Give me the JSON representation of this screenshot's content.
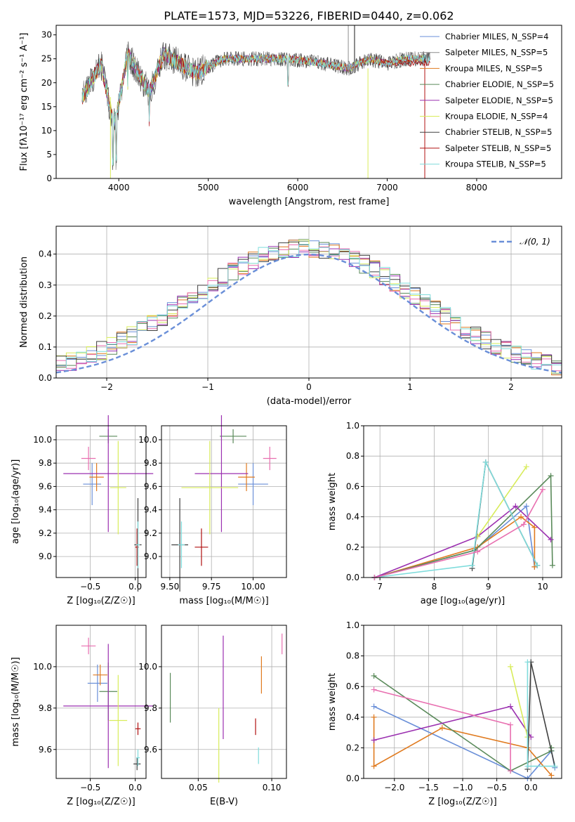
{
  "colors": [
    "#6a8fd8",
    "#8c8c8c",
    "#e07b20",
    "#5a8a5a",
    "#9b30b0",
    "#d8ec5a",
    "#404040",
    "#b01010",
    "#7fdcdc",
    "#e86fb0"
  ],
  "chart_data": [
    {
      "id": "spectrum",
      "type": "line",
      "title": "PLATE=1573, MJD=53226, FIBERID=0440, z=0.062",
      "xlabel": "wavelength [Angstrom, rest frame]",
      "ylabel": "Flux [fλ10⁻¹⁷ erg cm⁻² s⁻¹ A⁻¹]",
      "xlim": [
        3300,
        8950
      ],
      "ylim": [
        0,
        32
      ],
      "xticks": [
        "4000",
        "5000",
        "6000",
        "7000",
        "8000"
      ],
      "yticks": [
        "0",
        "5",
        "10",
        "15",
        "20",
        "25",
        "30"
      ],
      "legend_position": "upper-right",
      "legend": [
        "Chabrier MILES, N_SSP=4",
        "Salpeter MILES, N_SSP=5",
        "Kroupa MILES, N_SSP=5",
        "Chabrier ELODIE, N_SSP=5",
        "Salpeter ELODIE, N_SSP=5",
        "Kroupa ELODIE, N_SSP=4",
        "Chabrier STELIB, N_SSP=5",
        "Salpeter STELIB, N_SSP=5",
        "Kroupa STELIB, N_SSP=5"
      ],
      "series_anchor_x": [
        3600,
        3800,
        3935,
        3970,
        4100,
        4340,
        4500,
        4860,
        5175,
        5400,
        5900,
        6300,
        6565,
        6800,
        7000,
        7200,
        7400,
        7600
      ],
      "series_anchor_y": [
        17,
        24,
        12,
        13,
        26,
        18,
        26,
        22,
        25,
        25,
        25,
        24,
        23,
        25,
        24,
        25,
        25,
        25
      ]
    },
    {
      "id": "residuals",
      "type": "step",
      "xlabel": "(data-model)/error",
      "ylabel": "Normed distribution",
      "xlim": [
        -2.5,
        2.5
      ],
      "ylim": [
        0,
        0.49
      ],
      "xticks": [
        "−2",
        "−1",
        "0",
        "1",
        "2"
      ],
      "yticks": [
        "0.0",
        "0.1",
        "0.2",
        "0.3",
        "0.4"
      ],
      "legend": [
        "𝒩(0, 1)"
      ],
      "legend_position": "upper-right",
      "grid": true
    },
    {
      "id": "age_vs_Z",
      "type": "errorbar",
      "xlabel": "Z [log₁₀(Z/Z☉)]",
      "ylabel": "age [log₁₀(age/yr)]",
      "xlim": [
        -0.88,
        0.12
      ],
      "ylim": [
        8.82,
        10.12
      ],
      "xticks": [
        "−0.5",
        "0.0"
      ],
      "yticks": [
        "9.0",
        "9.2",
        "9.4",
        "9.6",
        "9.8",
        "10.0"
      ],
      "points": [
        {
          "x": -0.48,
          "y": 9.62,
          "xerr": 0.1,
          "yerr": 0.18,
          "c": 0
        },
        {
          "x": -0.43,
          "y": 9.68,
          "xerr": 0.08,
          "yerr": 0.12,
          "c": 2
        },
        {
          "x": -0.3,
          "y": 10.03,
          "xerr": 0.1,
          "yerr": 0.06,
          "c": 3
        },
        {
          "x": -0.3,
          "y": 9.71,
          "xerr": 0.5,
          "yerr": 0.5,
          "c": 4
        },
        {
          "x": -0.19,
          "y": 9.59,
          "xerr": 0.09,
          "yerr": 0.4,
          "c": 5
        },
        {
          "x": 0.03,
          "y": 9.1,
          "xerr": 0.04,
          "yerr": 0.4,
          "c": 6
        },
        {
          "x": 0.02,
          "y": 9.08,
          "xerr": 0.02,
          "yerr": 0.16,
          "c": 7
        },
        {
          "x": 0.03,
          "y": 9.1,
          "xerr": 0.02,
          "yerr": 0.2,
          "c": 8
        },
        {
          "x": -0.52,
          "y": 9.84,
          "xerr": 0.08,
          "yerr": 0.1,
          "c": 9
        }
      ]
    },
    {
      "id": "age_vs_mass",
      "type": "errorbar",
      "xlabel": "mass [log₁₀(M/M☉)]",
      "ylabel": "",
      "xlim": [
        9.45,
        10.2
      ],
      "ylim": [
        8.82,
        10.12
      ],
      "xticks": [
        "9.50",
        "9.75",
        "10.00"
      ],
      "yticks": [
        "9.0",
        "9.2",
        "9.4",
        "9.6",
        "9.8",
        "10.0"
      ],
      "points": [
        {
          "x": 10.0,
          "y": 9.62,
          "xerr": 0.09,
          "yerr": 0.18,
          "c": 0
        },
        {
          "x": 9.96,
          "y": 9.68,
          "xerr": 0.05,
          "yerr": 0.12,
          "c": 2
        },
        {
          "x": 9.88,
          "y": 10.03,
          "xerr": 0.08,
          "yerr": 0.06,
          "c": 3
        },
        {
          "x": 9.81,
          "y": 9.71,
          "xerr": 0.16,
          "yerr": 0.5,
          "c": 4
        },
        {
          "x": 9.74,
          "y": 9.59,
          "xerr": 0.17,
          "yerr": 0.4,
          "c": 5
        },
        {
          "x": 9.56,
          "y": 9.1,
          "xerr": 0.05,
          "yerr": 0.4,
          "c": 6
        },
        {
          "x": 9.69,
          "y": 9.08,
          "xerr": 0.04,
          "yerr": 0.16,
          "c": 7
        },
        {
          "x": 9.57,
          "y": 9.1,
          "xerr": 0.02,
          "yerr": 0.2,
          "c": 8
        },
        {
          "x": 10.1,
          "y": 9.84,
          "xerr": 0.04,
          "yerr": 0.1,
          "c": 9
        }
      ]
    },
    {
      "id": "mass_weight_vs_age",
      "type": "line",
      "xlabel": "age [log₁₀(age/yr)]",
      "ylabel": "mass weight",
      "xlim": [
        6.7,
        10.35
      ],
      "ylim": [
        0,
        1.0
      ],
      "xticks": [
        "7",
        "8",
        "9",
        "10"
      ],
      "yticks": [
        "0.0",
        "0.2",
        "0.4",
        "0.6",
        "0.8",
        "1.0"
      ],
      "grid": true,
      "series": [
        {
          "c": 0,
          "x": [
            6.9,
            8.75,
            9.7,
            9.85
          ],
          "y": [
            0,
            0.18,
            0.47,
            0.07
          ]
        },
        {
          "c": 2,
          "x": [
            6.9,
            8.8,
            9.6,
            9.85,
            9.85
          ],
          "y": [
            0,
            0.2,
            0.4,
            0.33,
            0.07
          ]
        },
        {
          "c": 3,
          "x": [
            6.9,
            8.75,
            10.15,
            10.18
          ],
          "y": [
            0,
            0.18,
            0.67,
            0.08
          ]
        },
        {
          "c": 4,
          "x": [
            6.9,
            8.8,
            9.5,
            10.15
          ],
          "y": [
            0,
            0.27,
            0.47,
            0.25
          ]
        },
        {
          "c": 5,
          "x": [
            8.8,
            9.7
          ],
          "y": [
            0.27,
            0.73
          ]
        },
        {
          "c": 6,
          "x": [
            8.7,
            8.95,
            9.9
          ],
          "y": [
            0.06,
            0.76,
            0.08
          ]
        },
        {
          "c": 8,
          "x": [
            6.9,
            8.7,
            8.95,
            9.9
          ],
          "y": [
            0,
            0.08,
            0.76,
            0.08
          ]
        },
        {
          "c": 9,
          "x": [
            6.9,
            8.8,
            9.65,
            10.0
          ],
          "y": [
            0,
            0.17,
            0.35,
            0.58
          ]
        }
      ]
    },
    {
      "id": "mass_vs_Z",
      "type": "errorbar",
      "xlabel": "Z [log₁₀(Z/Z☉)]",
      "ylabel": "mass [log₁₀(M/M☉)]",
      "xlim": [
        -0.88,
        0.12
      ],
      "ylim": [
        9.46,
        10.2
      ],
      "xticks": [
        "−0.5",
        "0.0"
      ],
      "yticks": [
        "9.6",
        "9.8",
        "10.0"
      ],
      "points": [
        {
          "x": -0.42,
          "y": 9.92,
          "xerr": 0.11,
          "yerr": 0.09,
          "c": 0
        },
        {
          "x": -0.39,
          "y": 9.96,
          "xerr": 0.08,
          "yerr": 0.05,
          "c": 2
        },
        {
          "x": -0.3,
          "y": 9.88,
          "xerr": 0.1,
          "yerr": 0.14,
          "c": 3
        },
        {
          "x": -0.3,
          "y": 9.81,
          "xerr": 0.5,
          "yerr": 0.3,
          "c": 4
        },
        {
          "x": -0.19,
          "y": 9.74,
          "xerr": 0.1,
          "yerr": 0.22,
          "c": 5
        },
        {
          "x": 0.02,
          "y": 9.53,
          "xerr": 0.04,
          "yerr": 0.03,
          "c": 6
        },
        {
          "x": 0.03,
          "y": 9.7,
          "xerr": 0.03,
          "yerr": 0.03,
          "c": 7
        },
        {
          "x": 0.03,
          "y": 9.56,
          "xerr": 0.02,
          "yerr": 0.04,
          "c": 8
        },
        {
          "x": -0.52,
          "y": 10.1,
          "xerr": 0.08,
          "yerr": 0.04,
          "c": 9
        }
      ]
    },
    {
      "id": "mass_vs_ebv",
      "type": "errorbar",
      "xlabel": "E(B-V)",
      "ylabel": "",
      "xlim": [
        0.025,
        0.11
      ],
      "ylim": [
        9.46,
        10.2
      ],
      "xticks": [
        "0.05",
        "0.10"
      ],
      "yticks": [
        "9.6",
        "9.8",
        "10.0"
      ],
      "points": [
        {
          "x": 0.093,
          "y": 9.96,
          "xerr": 0,
          "yerr": 0.09,
          "c": 2
        },
        {
          "x": 0.031,
          "y": 9.85,
          "xerr": 0,
          "yerr": 0.12,
          "c": 3
        },
        {
          "x": 0.067,
          "y": 9.9,
          "xerr": 0,
          "yerr": 0.25,
          "c": 4
        },
        {
          "x": 0.064,
          "y": 9.62,
          "xerr": 0,
          "yerr": 0.18,
          "c": 5
        },
        {
          "x": 0.089,
          "y": 9.71,
          "xerr": 0,
          "yerr": 0.04,
          "c": 7
        },
        {
          "x": 0.091,
          "y": 9.57,
          "xerr": 0,
          "yerr": 0.04,
          "c": 8
        },
        {
          "x": 0.107,
          "y": 10.11,
          "xerr": 0,
          "yerr": 0.05,
          "c": 9
        }
      ]
    },
    {
      "id": "mass_weight_vs_Z",
      "type": "line",
      "xlabel": "Z [log₁₀(Z/Z☉)]",
      "ylabel": "mass weight",
      "xlim": [
        -2.45,
        0.45
      ],
      "ylim": [
        0,
        1.0
      ],
      "xticks": [
        "−2.0",
        "−1.5",
        "−1.0",
        "−0.5",
        "0.0"
      ],
      "yticks": [
        "0.0",
        "0.2",
        "0.4",
        "0.6",
        "0.8",
        "1.0"
      ],
      "grid": true,
      "series": [
        {
          "c": 0,
          "x": [
            -2.3,
            -0.05,
            0.3,
            0.35
          ],
          "y": [
            0.47,
            0,
            0.18,
            0.07
          ]
        },
        {
          "c": 2,
          "x": [
            -2.3,
            -2.3,
            -1.3,
            -0.05,
            0.3
          ],
          "y": [
            0.4,
            0.08,
            0.33,
            0.2,
            0.02
          ]
        },
        {
          "c": 3,
          "x": [
            -2.3,
            -0.3,
            0.3,
            0.3
          ],
          "y": [
            0.67,
            0.05,
            0.18,
            0.2
          ]
        },
        {
          "c": 4,
          "x": [
            -2.3,
            -0.3,
            0.0
          ],
          "y": [
            0.25,
            0.47,
            0.27
          ]
        },
        {
          "c": 5,
          "x": [
            -0.3,
            -0.05
          ],
          "y": [
            0.73,
            0.27
          ]
        },
        {
          "c": 6,
          "x": [
            -0.05,
            0.0,
            0.35
          ],
          "y": [
            0.06,
            0.76,
            0.08
          ]
        },
        {
          "c": 8,
          "x": [
            -0.05,
            -0.05,
            0.35
          ],
          "y": [
            0.76,
            0.08,
            0.08
          ]
        },
        {
          "c": 9,
          "x": [
            -2.3,
            -0.3,
            -0.3
          ],
          "y": [
            0.58,
            0.35,
            0.05
          ]
        }
      ]
    }
  ]
}
